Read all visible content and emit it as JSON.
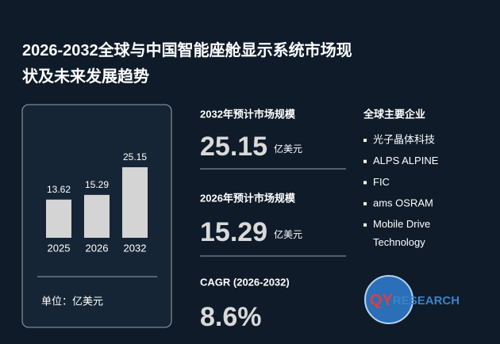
{
  "title": "2026-2032全球与中国智能座舱显示系统市场现状及未来发展趋势",
  "chart_data": {
    "type": "bar",
    "categories": [
      "2025",
      "2026",
      "2032"
    ],
    "values": [
      13.62,
      15.29,
      25.15
    ],
    "color": "#d4d4d4",
    "unit_label": "单位：亿美元"
  },
  "stats": [
    {
      "label": "2032年预计市场规模",
      "value": "25.15",
      "unit": "亿美元"
    },
    {
      "label": "2026年预计市场规模",
      "value": "15.29",
      "unit": "亿美元"
    },
    {
      "label": "CAGR (2026-2032)",
      "value": "8.6%"
    }
  ],
  "companies": {
    "title": "全球主要企业",
    "items": [
      "光子晶体科技",
      "ALPS ALPINE",
      "FIC",
      "ams OSRAM",
      "Mobile Drive Technology"
    ]
  },
  "logo": {
    "prefix": "QY",
    "suffix": "RESEARCH"
  }
}
